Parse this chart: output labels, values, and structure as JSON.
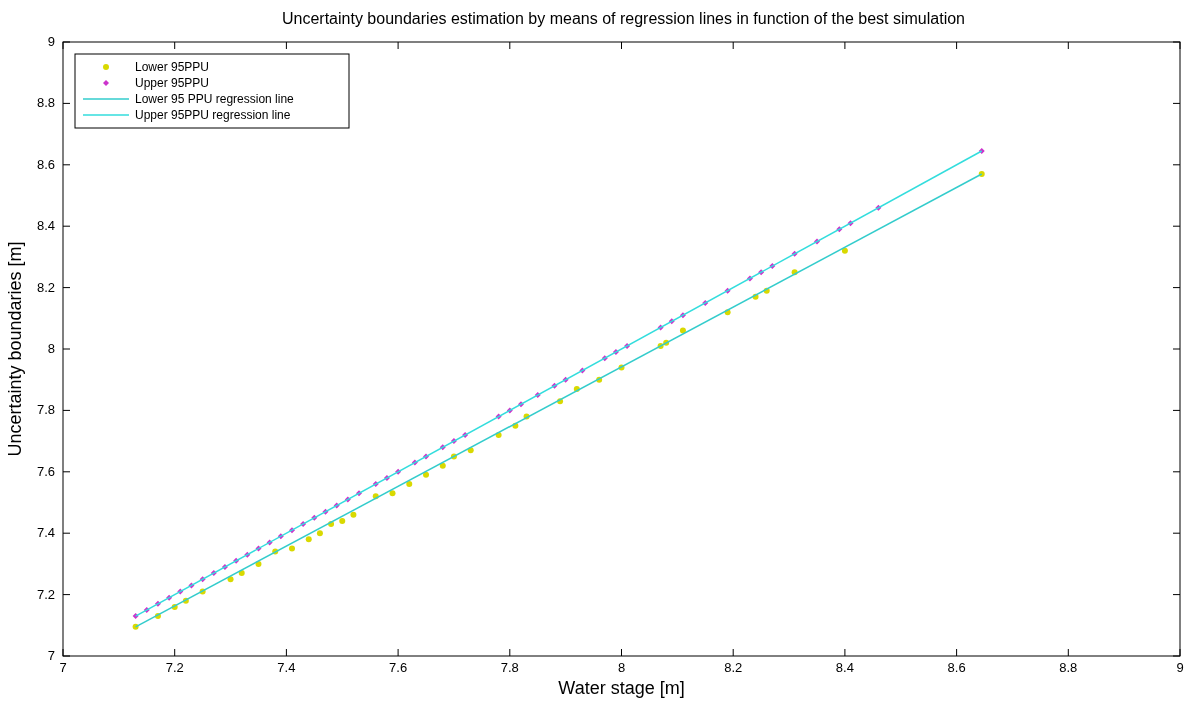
{
  "chart_data": {
    "type": "scatter",
    "title": "Uncertainty boundaries estimation by means of regression lines in function of the best simulation",
    "xlabel": "Water stage [m]",
    "ylabel": "Uncertainty boundaries [m]",
    "xlim": [
      7,
      9
    ],
    "ylim": [
      7,
      9
    ],
    "xticks": [
      7,
      7.2,
      7.4,
      7.6,
      7.8,
      8,
      8.2,
      8.4,
      8.6,
      8.8,
      9
    ],
    "yticks": [
      7,
      7.2,
      7.4,
      7.6,
      7.8,
      8,
      8.2,
      8.4,
      8.6,
      8.8,
      9
    ],
    "grid": false,
    "legend": "top left",
    "series": [
      {
        "name": "Lower 95PPU",
        "marker": "circle",
        "color": "#d9d900",
        "x": [
          7.13,
          7.17,
          7.2,
          7.22,
          7.25,
          7.3,
          7.32,
          7.35,
          7.38,
          7.41,
          7.44,
          7.46,
          7.48,
          7.5,
          7.52,
          7.56,
          7.59,
          7.62,
          7.65,
          7.68,
          7.7,
          7.73,
          7.78,
          7.81,
          7.83,
          7.89,
          7.92,
          7.96,
          8.0,
          8.07,
          8.08,
          8.11,
          8.19,
          8.24,
          8.26,
          8.31,
          8.4,
          8.645
        ],
        "values": [
          7.095,
          7.13,
          7.16,
          7.18,
          7.21,
          7.25,
          7.27,
          7.3,
          7.34,
          7.35,
          7.38,
          7.4,
          7.43,
          7.44,
          7.46,
          7.52,
          7.53,
          7.56,
          7.59,
          7.62,
          7.65,
          7.67,
          7.72,
          7.75,
          7.78,
          7.83,
          7.87,
          7.9,
          7.94,
          8.01,
          8.02,
          8.06,
          8.12,
          8.17,
          8.19,
          8.25,
          8.32,
          8.57
        ]
      },
      {
        "name": "Upper 95PPU",
        "marker": "diamond",
        "color": "#cc33cc",
        "x": [
          7.13,
          7.15,
          7.17,
          7.19,
          7.21,
          7.23,
          7.25,
          7.27,
          7.29,
          7.31,
          7.33,
          7.35,
          7.37,
          7.39,
          7.41,
          7.43,
          7.45,
          7.47,
          7.49,
          7.51,
          7.53,
          7.56,
          7.58,
          7.6,
          7.63,
          7.65,
          7.68,
          7.7,
          7.72,
          7.78,
          7.8,
          7.82,
          7.85,
          7.88,
          7.9,
          7.93,
          7.97,
          7.99,
          8.01,
          8.07,
          8.09,
          8.11,
          8.15,
          8.19,
          8.23,
          8.25,
          8.27,
          8.31,
          8.35,
          8.39,
          8.41,
          8.46,
          8.645
        ],
        "values": [
          7.13,
          7.15,
          7.17,
          7.19,
          7.21,
          7.23,
          7.25,
          7.27,
          7.29,
          7.31,
          7.33,
          7.35,
          7.37,
          7.39,
          7.41,
          7.43,
          7.45,
          7.47,
          7.49,
          7.51,
          7.53,
          7.56,
          7.58,
          7.6,
          7.63,
          7.65,
          7.68,
          7.7,
          7.72,
          7.78,
          7.8,
          7.82,
          7.85,
          7.88,
          7.9,
          7.93,
          7.97,
          7.99,
          8.01,
          8.07,
          8.09,
          8.11,
          8.15,
          8.19,
          8.23,
          8.25,
          8.27,
          8.31,
          8.35,
          8.39,
          8.41,
          8.46,
          8.645
        ]
      },
      {
        "name": "Lower 95 PPU regression line",
        "type": "line",
        "marker": "none",
        "color": "#33cccc",
        "x": [
          7.13,
          8.645
        ],
        "values": [
          7.095,
          8.57
        ]
      },
      {
        "name": "Upper 95PPU regression line",
        "type": "line",
        "marker": "none",
        "color": "#33dddd",
        "x": [
          7.13,
          8.645
        ],
        "values": [
          7.13,
          8.645
        ]
      }
    ]
  }
}
